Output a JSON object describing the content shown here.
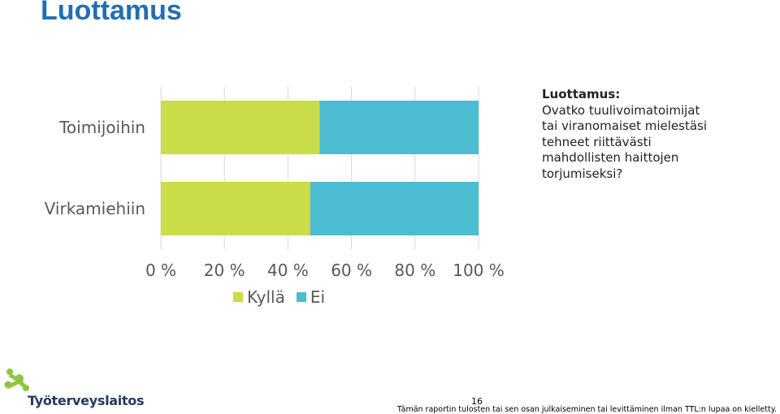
{
  "page": {
    "title": "Luottamus",
    "question_heading": "Luottamus:",
    "question_text": "Ovatko tuulivoimatoimijat\ntai viranomaiset mielestäsi\ntehneet riittävästi\nmahdollisten haittojen\ntorjumiseksi?",
    "page_number": "16",
    "footer_text": "Tämän raportin tulosten tai sen osan julkaiseminen tai levittäminen ilman TTL:n lupaa on kielletty.",
    "logo_text": "Työterveyslaitos"
  },
  "colors": {
    "title": "#1f6fb5",
    "kylla": "#cadc47",
    "ei": "#4cbcd0",
    "logo_green": "#8dc63f",
    "logo_blue": "#1f3b63"
  },
  "chart_data": {
    "type": "bar",
    "orientation": "horizontal",
    "stacked": "percent",
    "categories": [
      "Toimijoihin",
      "Virkamiehiin"
    ],
    "series": [
      {
        "name": "Kyllä",
        "values": [
          50,
          47
        ]
      },
      {
        "name": "Ei",
        "values": [
          50,
          53
        ]
      }
    ],
    "xlim": [
      0,
      100
    ],
    "x_ticks": [
      "0 %",
      "20 %",
      "40 %",
      "60 %",
      "80 %",
      "100 %"
    ],
    "grid": true,
    "legend_position": "bottom"
  }
}
